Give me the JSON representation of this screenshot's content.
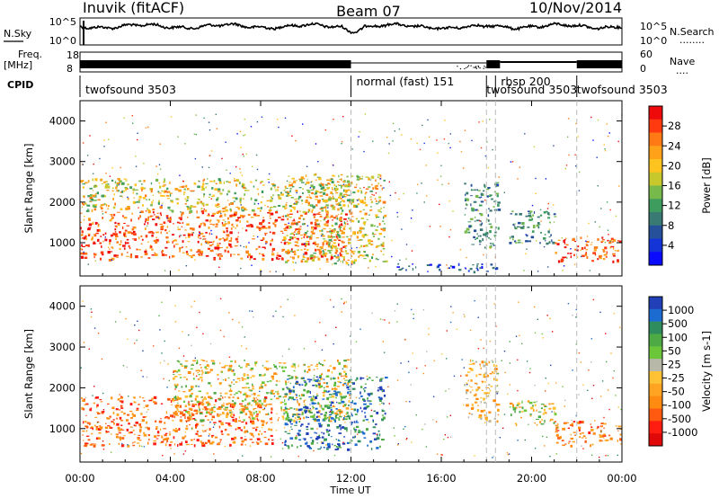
{
  "header": {
    "station": "Inuvik",
    "processing": "(fitACF)",
    "beam": "Beam 07",
    "date": "10/Nov/2014"
  },
  "strip_labels": {
    "nsky": "N.Sky",
    "nsearch": "N.Search",
    "nsearch_dots": "........",
    "freq_top": "Freq.",
    "freq_unit": "[MHz]",
    "nave": "Nave",
    "nave_dots": "....",
    "cpid": "CPID"
  },
  "noise_axis": {
    "left_ticks": [
      "10^5",
      "10^0"
    ],
    "right_ticks": [
      "10^5",
      "10^0"
    ]
  },
  "freq_axis": {
    "freq_ticks": [
      "18",
      "8"
    ],
    "nave_ticks": [
      "60",
      "0"
    ]
  },
  "cpid_segments": [
    {
      "label": "twofsound 3503",
      "start_h": 0.0,
      "end_h": 12.0
    },
    {
      "label": "normal (fast) 151",
      "start_h": 12.0,
      "end_h": 18.0
    },
    {
      "label": "twofsound 3503",
      "start_h": 18.0,
      "end_h": 18.4
    },
    {
      "label": "rbsp 200",
      "start_h": 18.4,
      "end_h": 22.0
    },
    {
      "label": "twofsound 3503",
      "start_h": 22.0,
      "end_h": 24.0
    }
  ],
  "x_axis": {
    "label": "Time UT",
    "ticks": [
      "00:00",
      "04:00",
      "08:00",
      "12:00",
      "16:00",
      "20:00",
      "00:00"
    ]
  },
  "chart_data": [
    {
      "type": "heatmap",
      "parameter": "Power",
      "ylabel": "Slant Range [km]",
      "xlabel": "Time UT",
      "x_range_hours": [
        0,
        24
      ],
      "ylim": [
        180,
        4500
      ],
      "y_ticks": [
        1000,
        2000,
        3000,
        4000
      ],
      "colorbar": {
        "label": "Power [dB]",
        "range": [
          0,
          32
        ],
        "tick_labels": [
          "28",
          "24",
          "20",
          "16",
          "12",
          "8",
          "4"
        ],
        "colors": [
          "#ee0a0a",
          "#ff3a0f",
          "#ff7a14",
          "#ffa21a",
          "#ffc31f",
          "#c6c82b",
          "#78b94b",
          "#3e9d5e",
          "#3a7a74",
          "#26509a",
          "#1434d8",
          "#0a0aff"
        ]
      },
      "regions": [
        {
          "t": [
            0.0,
            12.0
          ],
          "range": [
            600,
            1800
          ],
          "dominant": "red/orange"
        },
        {
          "t": [
            0.0,
            12.0
          ],
          "range": [
            1800,
            2600
          ],
          "dominant": "orange/green"
        },
        {
          "t": [
            9.0,
            13.5
          ],
          "range": [
            500,
            2700
          ],
          "dominant": "orange/green"
        },
        {
          "t": [
            14.0,
            18.5
          ],
          "range": [
            300,
            500
          ],
          "dominant": "blue"
        },
        {
          "t": [
            17.0,
            18.5
          ],
          "range": [
            900,
            2500
          ],
          "dominant": "blue/green"
        },
        {
          "t": [
            19.0,
            21.0
          ],
          "range": [
            1000,
            1800
          ],
          "dominant": "blue/green"
        },
        {
          "t": [
            21.0,
            24.0
          ],
          "range": [
            550,
            1150
          ],
          "dominant": "red/orange"
        }
      ]
    },
    {
      "type": "heatmap",
      "parameter": "Velocity",
      "ylabel": "Slant Range [km]",
      "xlabel": "Time UT",
      "x_range_hours": [
        0,
        24
      ],
      "ylim": [
        180,
        4500
      ],
      "y_ticks": [
        1000,
        2000,
        3000,
        4000
      ],
      "colorbar": {
        "label": "Velocity [m s-1]",
        "tick_labels": [
          "1000",
          "500",
          "100",
          "50",
          "25",
          "-25",
          "-50",
          "-100",
          "-500",
          "-1000"
        ],
        "colors": [
          "#2140b8",
          "#1b6bd0",
          "#2f8c5c",
          "#4eaa45",
          "#6cc63a",
          "#b8b8a8",
          "#ffc235",
          "#ffa322",
          "#ff8c10",
          "#ff5a10",
          "#ff1c10",
          "#e00808"
        ]
      },
      "regions": [
        {
          "t": [
            0.0,
            8.5
          ],
          "range": [
            600,
            1800
          ],
          "dominant": "orange"
        },
        {
          "t": [
            4.0,
            12.0
          ],
          "range": [
            1200,
            2700
          ],
          "dominant": "green/orange"
        },
        {
          "t": [
            9.0,
            13.5
          ],
          "range": [
            500,
            2300
          ],
          "dominant": "blue/green"
        },
        {
          "t": [
            17.0,
            18.5
          ],
          "range": [
            1200,
            2700
          ],
          "dominant": "orange/grey"
        },
        {
          "t": [
            19.0,
            21.0
          ],
          "range": [
            1100,
            1700
          ],
          "dominant": "green/orange"
        },
        {
          "t": [
            21.0,
            24.0
          ],
          "range": [
            600,
            1200
          ],
          "dominant": "orange"
        }
      ]
    }
  ]
}
